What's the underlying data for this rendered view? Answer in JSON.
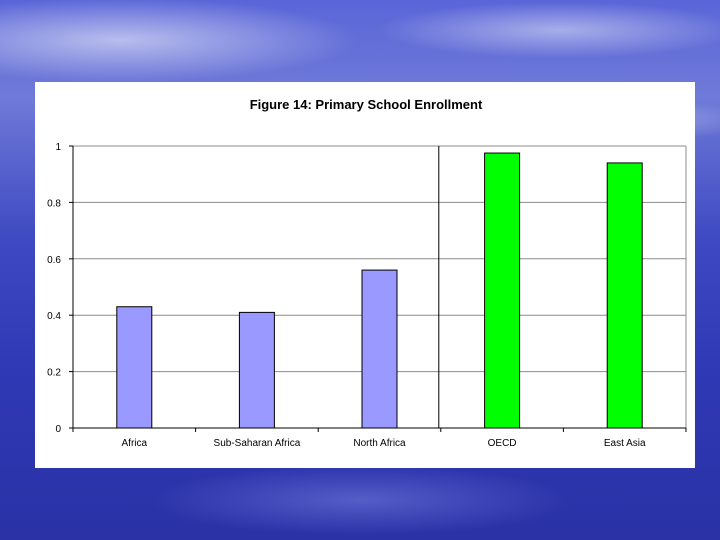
{
  "colors": {
    "background": "#3d48c2",
    "panel": "#ffffff",
    "bar_blue": "#9999ff",
    "bar_green": "#00ff00"
  },
  "chart_data": {
    "type": "bar",
    "title": "Figure 14: Primary School Enrollment",
    "xlabel": "",
    "ylabel": "",
    "categories": [
      "Africa",
      "Sub-Saharan Africa",
      "North Africa",
      "OECD",
      "East Asia"
    ],
    "values": [
      0.43,
      0.41,
      0.56,
      0.975,
      0.94
    ],
    "bar_colors": [
      "#9999ff",
      "#9999ff",
      "#9999ff",
      "#00ff00",
      "#00ff00"
    ],
    "ylim": [
      0,
      1
    ],
    "yticks": [
      "0",
      "0.2",
      "0.4",
      "0.6",
      "0.8",
      "1"
    ],
    "grid": true,
    "legend": "none",
    "separator_after_category": 2
  }
}
